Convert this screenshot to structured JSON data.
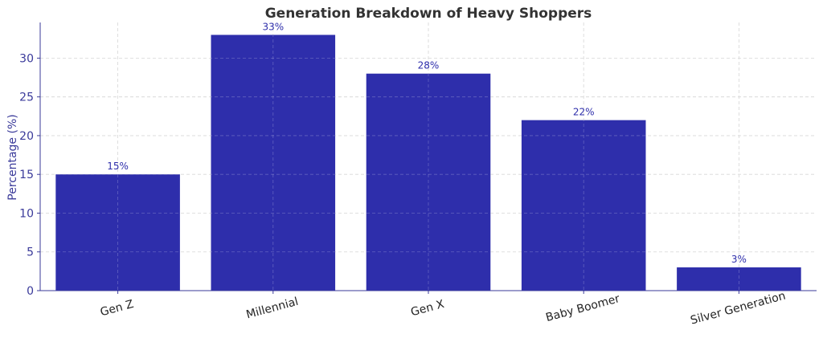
{
  "chart_data": {
    "type": "bar",
    "title": "Generation Breakdown of Heavy Shoppers",
    "xlabel": "",
    "ylabel": "Percentage (%)",
    "categories": [
      "Gen Z",
      "Millennial",
      "Gen X",
      "Baby Boomer",
      "Silver Generation"
    ],
    "values": [
      15,
      33,
      28,
      22,
      3
    ],
    "data_labels": [
      "15%",
      "33%",
      "28%",
      "22%",
      "3%"
    ],
    "ylim": [
      0,
      34.6
    ],
    "yticks": [
      0,
      5,
      10,
      15,
      20,
      25,
      30
    ],
    "grid": true,
    "legend": "none",
    "colors": {
      "bar": "#2e2eab",
      "axis": "#3a3a9a",
      "grid": "#cccccc",
      "label": "#2e2eab"
    }
  }
}
